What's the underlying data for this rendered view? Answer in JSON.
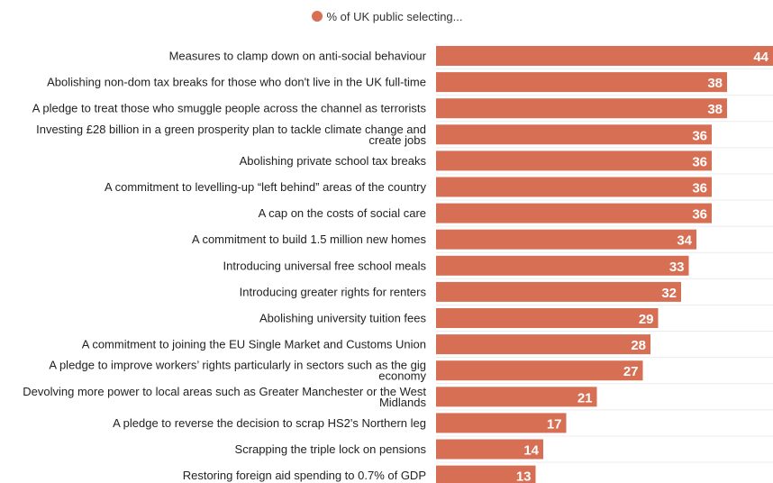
{
  "legend": {
    "label": "% of UK public selecting...",
    "color": "#d66f53"
  },
  "chart_data": {
    "type": "bar",
    "orientation": "horizontal",
    "title": "",
    "xlabel": "",
    "ylabel": "",
    "xlim": [
      0,
      44
    ],
    "grid": true,
    "legend_position": "top-center",
    "bar_color": "#d66f53",
    "series": [
      {
        "name": "% of UK public selecting...",
        "values": [
          44,
          38,
          38,
          36,
          36,
          36,
          36,
          34,
          33,
          32,
          29,
          28,
          27,
          21,
          17,
          14,
          13
        ]
      }
    ],
    "categories": [
      [
        "Measures to clamp down on anti-social behaviour"
      ],
      [
        "Abolishing non-dom tax breaks for those who don't live in the UK full-time"
      ],
      [
        "A pledge to treat those who smuggle people across the channel as terrorists"
      ],
      [
        "Investing £28 billion in a green prosperity plan to tackle climate change and",
        "create jobs"
      ],
      [
        "Abolishing private school tax breaks"
      ],
      [
        "A commitment to levelling-up “left behind” areas of the country"
      ],
      [
        "A cap on the costs of social care"
      ],
      [
        "A commitment to build 1.5 million new homes"
      ],
      [
        "Introducing universal free school meals"
      ],
      [
        "Introducing greater rights for renters"
      ],
      [
        "Abolishing university tuition fees"
      ],
      [
        "A commitment to joining the EU Single Market and Customs Union"
      ],
      [
        "A pledge to improve workers’ rights particularly in sectors such as the gig",
        "economy"
      ],
      [
        "Devolving more power to local areas such as Greater Manchester or the West",
        "Midlands"
      ],
      [
        "A pledge to reverse the decision to scrap HS2's Northern leg"
      ],
      [
        "Scrapping the triple lock on pensions"
      ],
      [
        "Restoring foreign aid spending to 0.7% of GDP"
      ]
    ]
  }
}
